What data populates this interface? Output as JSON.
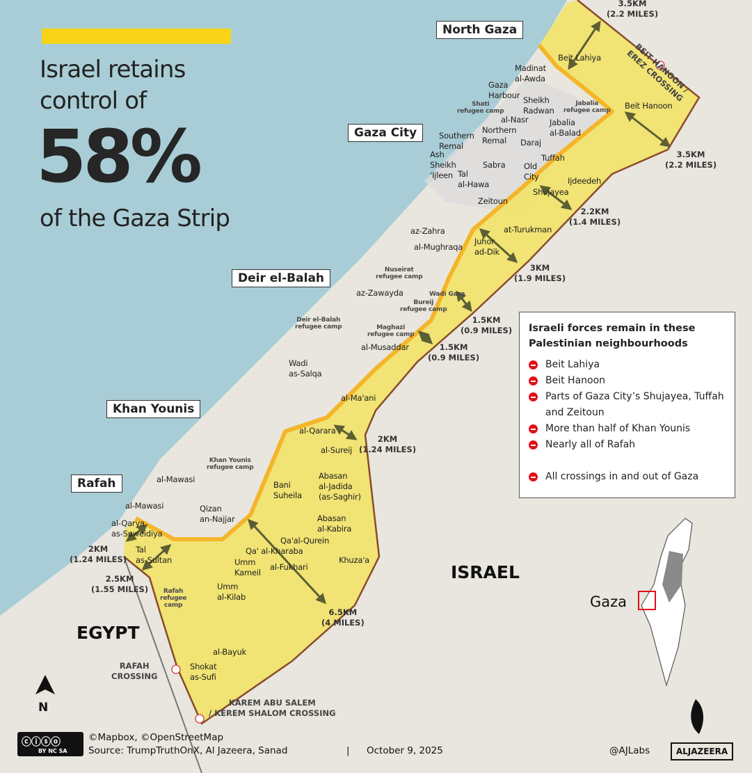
{
  "title": {
    "line1": "Israel retains",
    "line2": "control of",
    "percent": "58%",
    "line3": "of the Gaza Strip"
  },
  "regions": [
    "North Gaza",
    "Gaza City",
    "Deir el-Balah",
    "Khan Younis",
    "Rafah"
  ],
  "countries": {
    "israel": "ISRAEL",
    "egypt": "EGYPT"
  },
  "places": [
    "Beit Lahiya",
    "Madinat\nal-Awda",
    "Gaza\nHarbour",
    "Sheikh\nRadwan",
    "Beit Hanoon",
    "al-Nasr",
    "Jabalia\nal-Balad",
    "Northern\nRemal",
    "Southern\nRemal",
    "Daraj",
    "Ash\nSheikh\n'Ijleen",
    "Sabra",
    "Old\nCity",
    "Tuffah",
    "Tal\nal-Hawa",
    "Ijdeedeh",
    "Shujayea",
    "Zeitoun",
    "at-Turukman",
    "az-Zahra",
    "al-Mughraqa",
    "Juhor\nad-Dik",
    "az-Zawayda",
    "al-Musaddar",
    "Wadi\nas-Salqa",
    "al-Ma'ani",
    "al-Qarara",
    "al-Sureij",
    "al-Mawasi",
    "Bani\nSuheila",
    "Abasan\nal-Jadida\n(as-Saghir)",
    "al-Mawasi",
    "Qizan\nan-Najjar",
    "Abasan\nal-Kabira",
    "al-Qarya\nas-Suweidiya",
    "Qa'al-Qurein",
    "Qa' al-Kharaba",
    "Umm\nKameil",
    "al-Fukhari",
    "Khuza'a",
    "Tal\nas-Sultan",
    "Umm\nal-Kilab",
    "al-Bayuk",
    "Shokat\nas-Sufi"
  ],
  "camps": [
    "Shati\nrefugee camp",
    "Jabalia\nrefugee camp",
    "Nuseirat\nrefugee camp",
    "Wadi Gaza",
    "Bureij\nrefugee camp",
    "Deir el-Balah\nrefugee camp",
    "Maghazi\nrefugee camp",
    "Khan Younis\nrefugee camp",
    "Rafah\nrefugee\ncamp"
  ],
  "distances": [
    "3.5KM\n(2.2 MILES)",
    "3.5KM\n(2.2 MILES)",
    "2.2KM\n(1.4 MILES)",
    "3KM\n(1.9 MILES)",
    "1.5KM\n(0.9 MILES)",
    "1.5KM\n(0.9 MILES)",
    "2KM\n(1.24 MILES)",
    "2KM\n(1.24 MILES)",
    "2.5KM\n(1.55 MILES)",
    "6.5KM\n(4 MILES)"
  ],
  "crossings": [
    "BEIT HANOON /\nEREZ CROSSING",
    "RAFAH\nCROSSING",
    "KAREM ABU SALEM\n/ KEREM SHALOM CROSSING"
  ],
  "legend": {
    "heading": "Israeli forces remain in these Palestinian neighbourhoods",
    "items": [
      "Beit Lahiya",
      "Beit Hanoon",
      "Parts of Gaza City’s Shujayea, Tuffah and Zeitoun",
      "More than half of Khan Younis",
      "Nearly all of Rafah",
      "All crossings in and out of Gaza"
    ],
    "icon": "no-entry-icon",
    "icon_color": "#e0101a"
  },
  "inset": {
    "label": "Gaza"
  },
  "north": "N",
  "footer": {
    "credits": "©Mapbox, ©OpenStreetMap",
    "source": "Source: TrumpTruthOnX, Al Jazeera, Sanad",
    "separator": "|",
    "date": "October 9, 2025",
    "handle": "@AJLabs",
    "logo": "ALJAZEERA",
    "cc": "BY NC SA"
  },
  "colors": {
    "accent": "#f7d417",
    "controlled": "#f1e36a",
    "line": "#f4b52a",
    "sea": "#a9cdd6",
    "border": "#8a4a2a",
    "arrow": "#5c5f33"
  }
}
